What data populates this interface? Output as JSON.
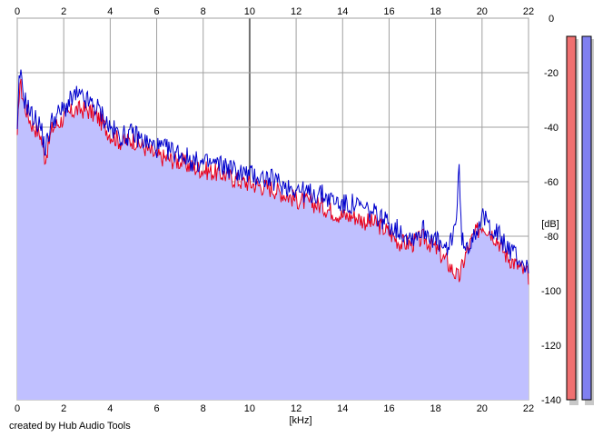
{
  "credit": "created by Hub Audio Tools",
  "chart_data": {
    "type": "area",
    "xlabel": "[kHz]",
    "ylabel": "[dB]",
    "xlim": [
      0,
      22
    ],
    "ylim": [
      -140,
      0
    ],
    "x_ticks": [
      0,
      2,
      4,
      6,
      8,
      10,
      12,
      14,
      16,
      18,
      20,
      22
    ],
    "y_ticks": [
      0,
      -20,
      -40,
      -60,
      -80,
      -100,
      -120,
      -140
    ],
    "grid": true,
    "colors": {
      "left": "#e8001c",
      "right": "#0000cc",
      "fill": "#c0c0ff"
    },
    "series": [
      {
        "channel": "left",
        "color": "#e8001c",
        "x": [
          0,
          0.1,
          0.3,
          0.6,
          1.0,
          1.2,
          1.5,
          2.0,
          2.5,
          3.0,
          3.5,
          4.0,
          4.5,
          5.0,
          5.5,
          6.0,
          6.5,
          7.0,
          7.5,
          8.0,
          8.5,
          9.0,
          9.5,
          10.0,
          10.5,
          11.0,
          11.5,
          12.0,
          12.5,
          13.0,
          13.5,
          14.0,
          14.5,
          15.0,
          15.5,
          16.0,
          16.5,
          17.0,
          17.5,
          18.0,
          18.5,
          19.0,
          19.3,
          19.6,
          20.0,
          20.3,
          20.7,
          21.0,
          21.5,
          22.0
        ],
        "y": [
          -47,
          -24,
          -33,
          -40,
          -44,
          -53,
          -42,
          -38,
          -35,
          -35,
          -38,
          -44,
          -47,
          -46,
          -49,
          -52,
          -53,
          -54,
          -56,
          -57,
          -58,
          -59,
          -61,
          -62,
          -63,
          -64,
          -66,
          -68,
          -69,
          -70,
          -72,
          -74,
          -74,
          -76,
          -77,
          -80,
          -84,
          -84,
          -82,
          -86,
          -91,
          -97,
          -88,
          -82,
          -77,
          -79,
          -83,
          -88,
          -92,
          -96
        ]
      },
      {
        "channel": "right",
        "color": "#0000cc",
        "x": [
          0,
          0.1,
          0.3,
          0.6,
          1.0,
          1.2,
          1.5,
          2.0,
          2.5,
          3.0,
          3.5,
          4.0,
          4.5,
          5.0,
          5.5,
          6.0,
          6.5,
          7.0,
          7.5,
          8.0,
          8.5,
          9.0,
          9.5,
          10.0,
          10.5,
          11.0,
          11.5,
          12.0,
          12.5,
          13.0,
          13.5,
          14.0,
          14.5,
          15.0,
          15.5,
          16.0,
          16.5,
          17.0,
          17.5,
          18.0,
          18.5,
          18.9,
          19.0,
          19.1,
          19.3,
          19.6,
          20.0,
          20.3,
          20.7,
          21.0,
          21.5,
          22.0
        ],
        "y": [
          -45,
          -21,
          -31,
          -37,
          -41,
          -50,
          -39,
          -35,
          -30,
          -32,
          -35,
          -42,
          -45,
          -44,
          -47,
          -49,
          -50,
          -51,
          -54,
          -55,
          -55,
          -56,
          -58,
          -59,
          -60,
          -61,
          -63,
          -64,
          -66,
          -66,
          -68,
          -70,
          -70,
          -72,
          -74,
          -77,
          -80,
          -82,
          -79,
          -83,
          -88,
          -75,
          -54,
          -80,
          -88,
          -81,
          -75,
          -77,
          -81,
          -85,
          -89,
          -94
        ]
      }
    ]
  }
}
